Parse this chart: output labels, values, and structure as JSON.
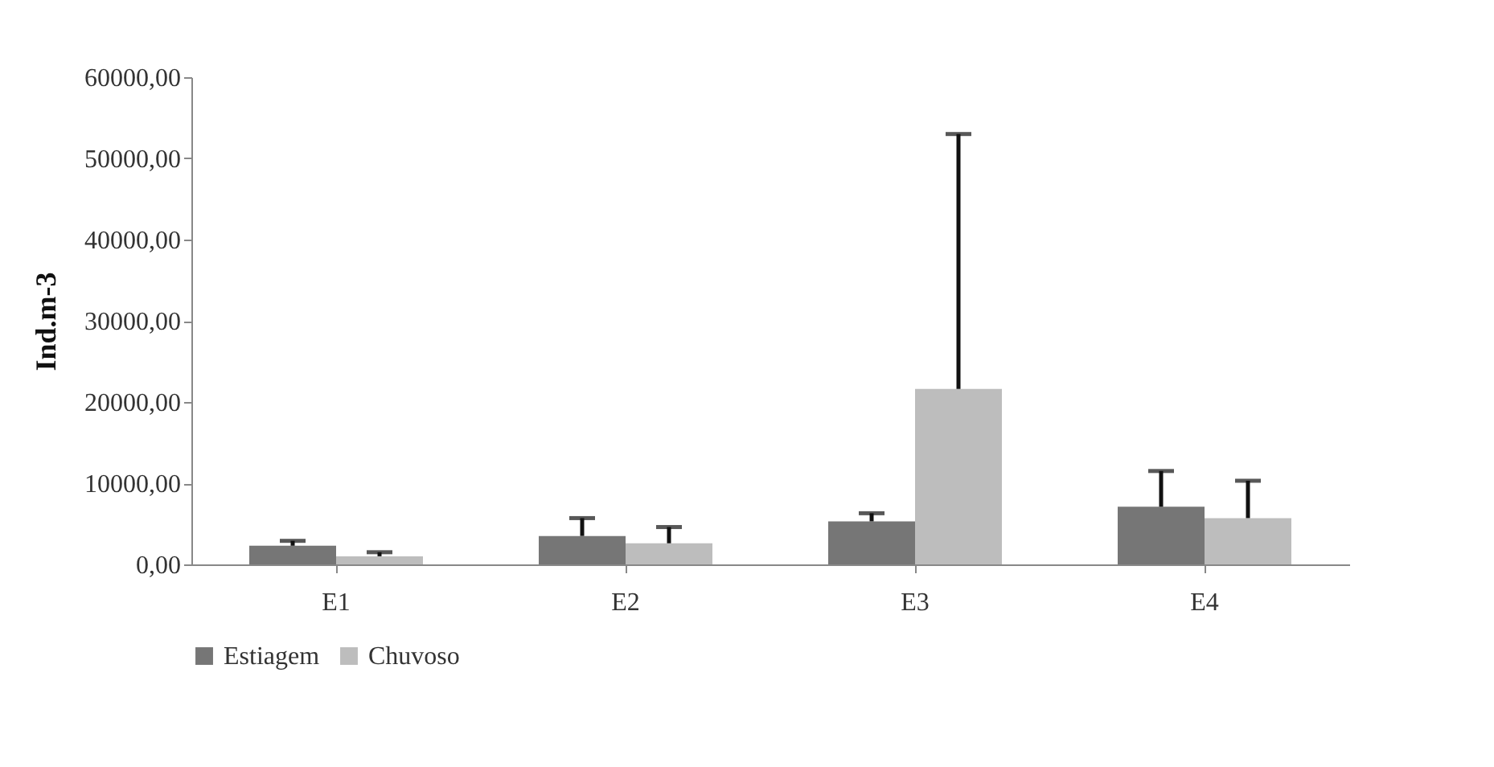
{
  "chart_data": {
    "type": "bar",
    "ylabel": "Ind.m-3",
    "categories": [
      "E1",
      "E2",
      "E3",
      "E4"
    ],
    "series": [
      {
        "name": "Estiagem",
        "color": "#767676",
        "values": [
          2300,
          3500,
          5300,
          7100
        ],
        "errors": [
          [
            2300,
            2900
          ],
          [
            3500,
            5700
          ],
          [
            5300,
            6300
          ],
          [
            7100,
            11500
          ]
        ]
      },
      {
        "name": "Chuvoso",
        "color": "#bdbdbd",
        "values": [
          1000,
          2600,
          21600,
          5700
        ],
        "errors": [
          [
            1000,
            1500
          ],
          [
            2600,
            4600
          ],
          [
            21600,
            53000
          ],
          [
            5700,
            10300
          ]
        ]
      }
    ],
    "ylim": [
      0,
      60000
    ],
    "yticks": [
      {
        "value": 0,
        "label": "0,00"
      },
      {
        "value": 10000,
        "label": "10000,00"
      },
      {
        "value": 20000,
        "label": "20000,00"
      },
      {
        "value": 30000,
        "label": "30000,00"
      },
      {
        "value": 40000,
        "label": "40000,00"
      },
      {
        "value": 50000,
        "label": "50000,00"
      },
      {
        "value": 60000,
        "label": "60000,00"
      }
    ],
    "grid": false,
    "legend": "bottom"
  }
}
